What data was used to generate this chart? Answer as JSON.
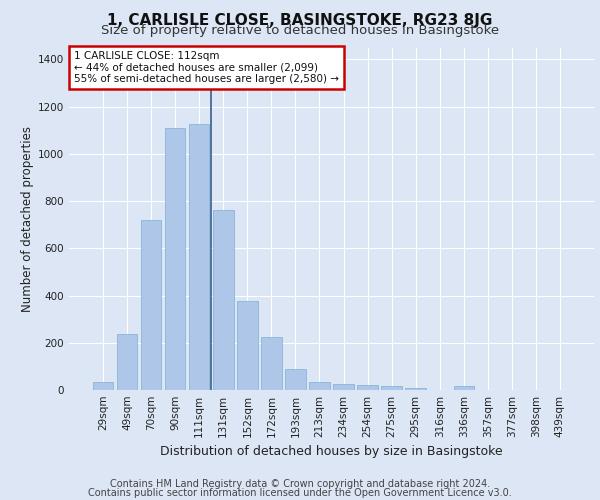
{
  "title": "1, CARLISLE CLOSE, BASINGSTOKE, RG23 8JG",
  "subtitle": "Size of property relative to detached houses in Basingstoke",
  "xlabel": "Distribution of detached houses by size in Basingstoke",
  "ylabel": "Number of detached properties",
  "categories": [
    "29sqm",
    "49sqm",
    "70sqm",
    "90sqm",
    "111sqm",
    "131sqm",
    "152sqm",
    "172sqm",
    "193sqm",
    "213sqm",
    "234sqm",
    "254sqm",
    "275sqm",
    "295sqm",
    "316sqm",
    "336sqm",
    "357sqm",
    "377sqm",
    "398sqm",
    "439sqm"
  ],
  "values": [
    35,
    235,
    720,
    1110,
    1125,
    760,
    375,
    225,
    90,
    35,
    25,
    20,
    15,
    10,
    0,
    15,
    0,
    0,
    0,
    0
  ],
  "bar_color": "#aec6e8",
  "bar_edge_color": "#7bafd4",
  "vline_x": 4.5,
  "vline_color": "#3a5f8a",
  "annotation_box_text": "1 CARLISLE CLOSE: 112sqm\n← 44% of detached houses are smaller (2,099)\n55% of semi-detached houses are larger (2,580) →",
  "annotation_box_color": "#cc0000",
  "bg_color": "#dce6f5",
  "plot_bg_color": "#dce6f5",
  "ylim": [
    0,
    1450
  ],
  "yticks": [
    0,
    200,
    400,
    600,
    800,
    1000,
    1200,
    1400
  ],
  "footer_line1": "Contains HM Land Registry data © Crown copyright and database right 2024.",
  "footer_line2": "Contains public sector information licensed under the Open Government Licence v3.0.",
  "title_fontsize": 11,
  "subtitle_fontsize": 9.5,
  "xlabel_fontsize": 9,
  "ylabel_fontsize": 8.5,
  "tick_fontsize": 7.5,
  "footer_fontsize": 7
}
